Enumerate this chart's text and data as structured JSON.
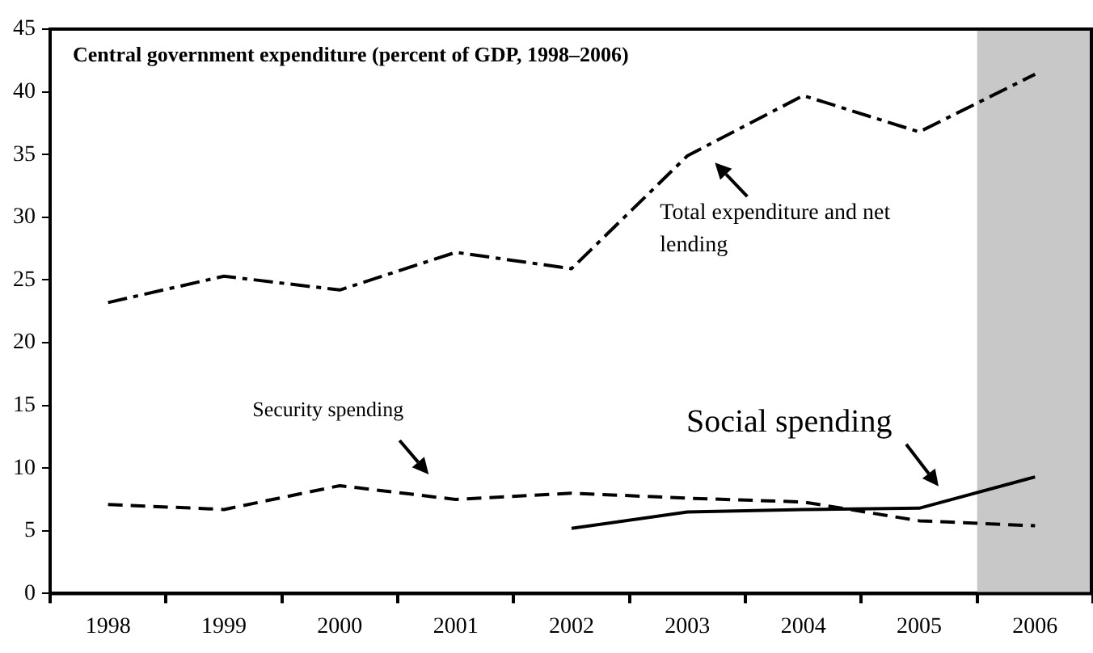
{
  "chart_data": {
    "type": "line",
    "title": "Central government expenditure (percent of GDP, 1998–2006)",
    "categories": [
      "1998",
      "1999",
      "2000",
      "2001",
      "2002",
      "2003",
      "2004",
      "2005",
      "2006"
    ],
    "series": [
      {
        "color": "#000000",
        "line_style": "dashdot",
        "values": [
          23.2,
          25.3,
          24.2,
          27.2,
          25.9,
          34.9,
          39.7,
          36.8,
          41.4
        ]
      },
      {
        "color": "#000000",
        "line_style": "dashed",
        "values": [
          7.1,
          6.7,
          8.6,
          7.5,
          8.0,
          7.6,
          7.3,
          5.8,
          5.4
        ]
      },
      {
        "color": "#000000",
        "line_style": "solid",
        "values": [
          null,
          null,
          null,
          null,
          5.2,
          6.5,
          6.7,
          6.8,
          9.3
        ]
      }
    ],
    "ylim": [
      0,
      45
    ],
    "yticks": [
      0,
      5,
      10,
      15,
      20,
      25,
      30,
      35,
      40,
      45
    ],
    "bands": [
      {
        "axis": "x",
        "from": "2006",
        "to": "2006",
        "color": "#c8c8c8"
      }
    ],
    "annotations": [
      {
        "text": "Total expenditure and net lending",
        "x": "2003",
        "y": 35
      },
      "Security spending",
      {
        "text": "Social spending",
        "x": "2005",
        "y": 7
      }
    ],
    "legend": false,
    "marker": "none"
  }
}
